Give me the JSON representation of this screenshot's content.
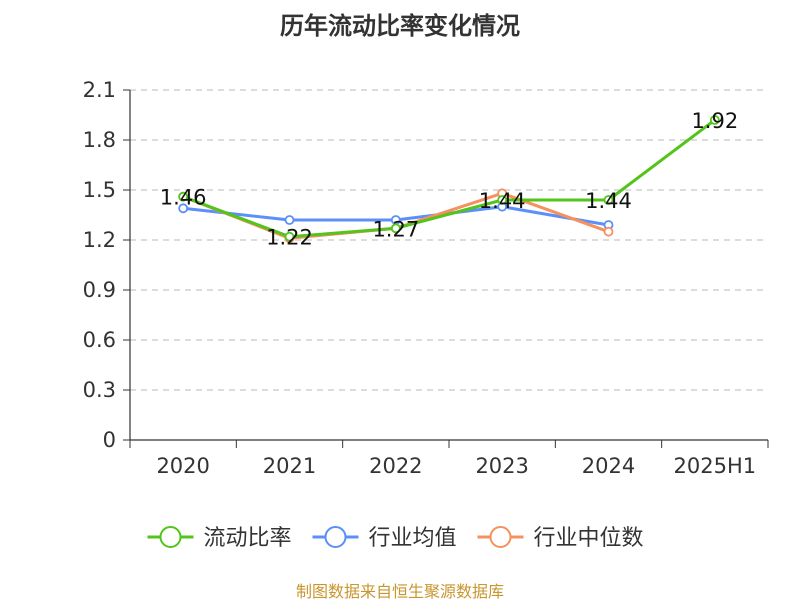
{
  "title": "历年流动比率变化情况",
  "source_note": "制图数据来自恒生聚源数据库",
  "chart_data": {
    "type": "line",
    "title": "历年流动比率变化情况",
    "categories": [
      "2020",
      "2021",
      "2022",
      "2023",
      "2024",
      "2025H1"
    ],
    "ylim": [
      0,
      2.1
    ],
    "yticks": [
      "0",
      "0.3",
      "0.6",
      "0.9",
      "1.2",
      "1.5",
      "1.8",
      "2.1"
    ],
    "grid": true,
    "legend_position": "bottom",
    "series": [
      {
        "name": "流动比率",
        "color": "#52c41a",
        "values": [
          1.46,
          1.22,
          1.27,
          1.44,
          1.44,
          1.92
        ],
        "labels": [
          "1.46",
          "1.22",
          "1.27",
          "1.44",
          "1.44",
          "1.92"
        ],
        "show_labels": true
      },
      {
        "name": "行业均值",
        "color": "#5b8ff9",
        "values": [
          1.39,
          1.32,
          1.32,
          1.4,
          1.29,
          null
        ],
        "show_labels": false
      },
      {
        "name": "行业中位数",
        "color": "#f6905f",
        "values": [
          1.46,
          1.21,
          1.27,
          1.48,
          1.25,
          null
        ],
        "show_labels": false
      }
    ]
  }
}
